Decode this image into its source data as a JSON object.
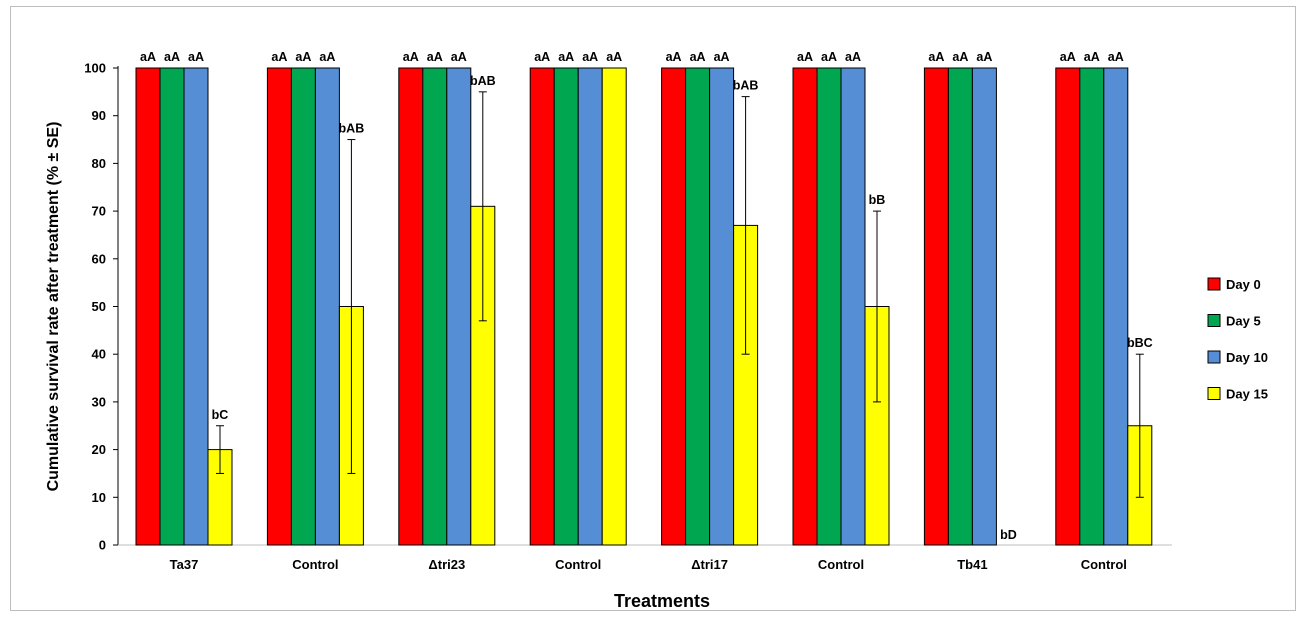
{
  "chart_data": {
    "type": "bar",
    "xlabel": "Treatments",
    "ylabel": "Cumulative survival rate after treatment (% ± SE)",
    "ylim": [
      0,
      100
    ],
    "yticks": [
      0,
      10,
      20,
      30,
      40,
      50,
      60,
      70,
      80,
      90,
      100
    ],
    "grid": false,
    "legend_position": "right",
    "categories": [
      "Ta37",
      "Control",
      "Δtri23",
      "Control",
      "Δtri17",
      "Control",
      "Tb41",
      "Control"
    ],
    "series": [
      {
        "name": "Day 0",
        "color": "#ff0000",
        "values": [
          100,
          100,
          100,
          100,
          100,
          100,
          100,
          100
        ],
        "error": [
          0,
          0,
          0,
          0,
          0,
          0,
          0,
          0
        ],
        "labels": [
          "aA",
          "aA",
          "aA",
          "aA",
          "aA",
          "aA",
          "aA",
          "aA"
        ]
      },
      {
        "name": "Day 5",
        "color": "#00a650",
        "values": [
          100,
          100,
          100,
          100,
          100,
          100,
          100,
          100
        ],
        "error": [
          0,
          0,
          0,
          0,
          0,
          0,
          0,
          0
        ],
        "labels": [
          "aA",
          "aA",
          "aA",
          "aA",
          "aA",
          "aA",
          "aA",
          "aA"
        ]
      },
      {
        "name": "Day 10",
        "color": "#558ed5",
        "values": [
          100,
          100,
          100,
          100,
          100,
          100,
          100,
          100
        ],
        "error": [
          0,
          0,
          0,
          0,
          0,
          0,
          0,
          0
        ],
        "labels": [
          "aA",
          "aA",
          "aA",
          "aA",
          "aA",
          "aA",
          "aA",
          "aA"
        ]
      },
      {
        "name": "Day 15",
        "color": "#ffff00",
        "values": [
          20,
          50,
          71,
          100,
          67,
          50,
          0,
          25
        ],
        "error": [
          5,
          35,
          24,
          0,
          27,
          20,
          0,
          15
        ],
        "labels": [
          "bC",
          "bAB",
          "bAB",
          "aA",
          "bAB",
          "bB",
          "bD",
          "bBC"
        ]
      }
    ]
  }
}
